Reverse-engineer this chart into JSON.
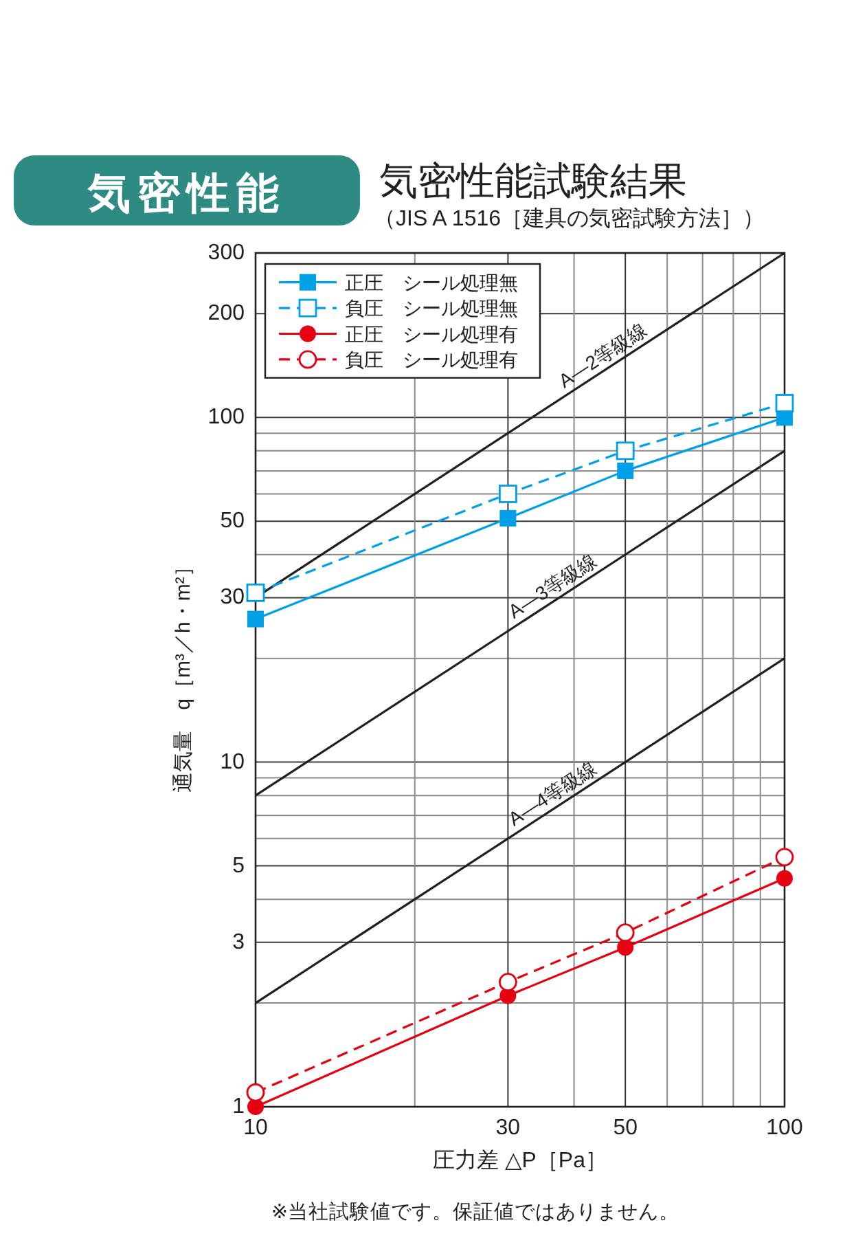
{
  "chart_data": {
    "type": "line",
    "title": "気密性能",
    "subtitle": "気密性能試験結果",
    "annotations": [
      "（JIS A 1516［建具の気密試験方法］）",
      "※当社試験値です。保証値ではありません。"
    ],
    "xlabel": "圧力差 △P［Pa］",
    "ylabel": "通気量　q［m³／h・m²］",
    "log": "xy",
    "grid": true,
    "legend": "top left",
    "xlim": [
      10,
      100
    ],
    "xticks": [
      10,
      {
        "value": 20,
        "label": null
      },
      30,
      {
        "value": 40,
        "label": null
      },
      50,
      {
        "value": 60,
        "label": null
      },
      {
        "value": 70,
        "label": null
      },
      {
        "value": 80,
        "label": null
      },
      {
        "value": 90,
        "label": null
      },
      100
    ],
    "ylim": [
      1,
      300
    ],
    "yticks": [
      1,
      {
        "value": 2,
        "label": null
      },
      3,
      {
        "value": 4,
        "label": null
      },
      5,
      {
        "value": 6,
        "label": null
      },
      {
        "value": 7,
        "label": null
      },
      {
        "value": 8,
        "label": null
      },
      {
        "value": 9,
        "label": null
      },
      10,
      {
        "value": 20,
        "label": null
      },
      30,
      {
        "value": 40,
        "label": null
      },
      50,
      {
        "value": 60,
        "label": null
      },
      {
        "value": 70,
        "label": null
      },
      {
        "value": 80,
        "label": null
      },
      {
        "value": 90,
        "label": null
      },
      100,
      200,
      300
    ],
    "x": [
      10,
      30,
      50,
      100
    ],
    "series": [
      {
        "name": "A—2等級線",
        "color": "#231f20",
        "values": [
          30,
          90,
          150,
          300
        ],
        "marker": "none",
        "line_style": "solid"
      },
      {
        "name": "A—3等級線",
        "color": "#231f20",
        "values": [
          8,
          24,
          40,
          80
        ],
        "marker": "none",
        "line_style": "solid"
      },
      {
        "name": "A—4等級線",
        "color": "#231f20",
        "values": [
          2,
          6,
          10,
          20
        ],
        "marker": "none",
        "line_style": "solid"
      },
      {
        "name": "正圧　シール処理無",
        "color": "#00a0e9",
        "values": [
          26,
          51,
          70,
          100
        ],
        "marker": "square",
        "line_style": "solid"
      },
      {
        "name": "負圧　シール処理無",
        "color": "#00a0e9",
        "values": [
          31,
          60,
          80,
          110
        ],
        "marker": "square",
        "line_style": "dashed"
      },
      {
        "name": "正圧　シール処理有",
        "color": "#e60012",
        "values": [
          1,
          2.1,
          2.9,
          4.6
        ],
        "marker": "circle",
        "line_style": "solid"
      },
      {
        "name": "負圧　シール処理有",
        "color": "#e60012",
        "values": [
          1.1,
          2.3,
          3.2,
          5.3
        ],
        "marker": "circle",
        "line_style": "dashed"
      }
    ]
  }
}
